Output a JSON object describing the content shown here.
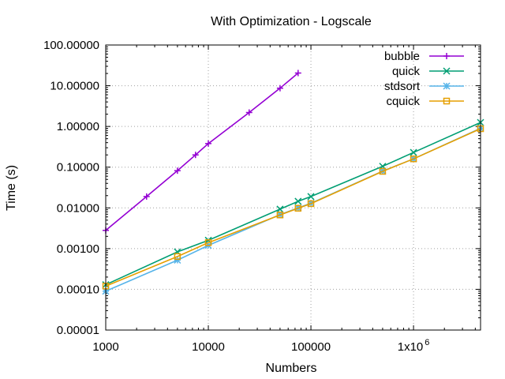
{
  "chart_data": {
    "type": "line",
    "title": "With Optimization - Logscale",
    "xlabel": "Numbers",
    "ylabel": "Time (s)",
    "xscale": "log",
    "yscale": "log",
    "xlim": [
      1000,
      4500000
    ],
    "ylim": [
      1e-05,
      100
    ],
    "grid": true,
    "legend_position": "top-right",
    "x_ticks": [
      {
        "value": 1000,
        "label": "1000"
      },
      {
        "value": 10000,
        "label": "10000"
      },
      {
        "value": 100000,
        "label": "100000"
      },
      {
        "value": 1000000,
        "label": "1x10",
        "sup": "6"
      }
    ],
    "y_ticks": [
      {
        "value": 1e-05,
        "label": "0.00001"
      },
      {
        "value": 0.0001,
        "label": "0.00010"
      },
      {
        "value": 0.001,
        "label": "0.00100"
      },
      {
        "value": 0.01,
        "label": "0.01000"
      },
      {
        "value": 0.1,
        "label": "0.10000"
      },
      {
        "value": 1,
        "label": "1.00000"
      },
      {
        "value": 10,
        "label": "10.00000"
      },
      {
        "value": 100,
        "label": "100.00000"
      }
    ],
    "series": [
      {
        "name": "bubble",
        "color": "#9400d3",
        "marker": "plus",
        "x": [
          1000,
          2500,
          5000,
          7500,
          10000,
          25000,
          50000,
          75000
        ],
        "y": [
          0.0028,
          0.019,
          0.082,
          0.2,
          0.38,
          2.2,
          8.7,
          20.5
        ]
      },
      {
        "name": "quick",
        "color": "#009e73",
        "marker": "x",
        "x": [
          1000,
          5000,
          10000,
          50000,
          75000,
          100000,
          500000,
          1000000,
          4500000
        ],
        "y": [
          0.00013,
          0.00083,
          0.0016,
          0.0093,
          0.0145,
          0.019,
          0.105,
          0.23,
          1.25
        ]
      },
      {
        "name": "stdsort",
        "color": "#56b4e9",
        "marker": "asterisk",
        "x": [
          1000,
          5000,
          10000,
          50000,
          75000,
          100000,
          500000,
          1000000,
          4500000
        ],
        "y": [
          9e-05,
          0.00052,
          0.0012,
          0.0068,
          0.01,
          0.013,
          0.08,
          0.16,
          0.9
        ]
      },
      {
        "name": "cquick",
        "color": "#e69f00",
        "marker": "square",
        "x": [
          1000,
          5000,
          10000,
          50000,
          75000,
          100000,
          500000,
          1000000,
          4500000
        ],
        "y": [
          0.00012,
          0.00064,
          0.0014,
          0.0067,
          0.0098,
          0.0127,
          0.079,
          0.16,
          0.88
        ]
      }
    ]
  }
}
